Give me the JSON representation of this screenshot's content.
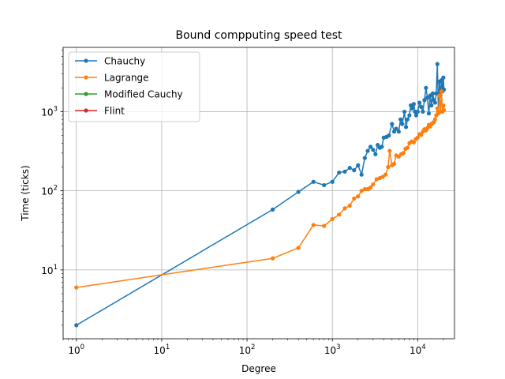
{
  "chart_data": {
    "type": "line",
    "title": "Bound compputing speed test",
    "xlabel": "Degree",
    "ylabel": "Time (ticks)",
    "xscale": "log",
    "yscale": "log",
    "xlim": [
      0.7,
      27000
    ],
    "ylim": [
      1.35,
      6500
    ],
    "grid": true,
    "legend_position": "upper-left",
    "x_ticks": [
      {
        "value": 1,
        "base": "10",
        "exp": "0"
      },
      {
        "value": 10,
        "base": "10",
        "exp": "1"
      },
      {
        "value": 100,
        "base": "10",
        "exp": "2"
      },
      {
        "value": 1000,
        "base": "10",
        "exp": "3"
      },
      {
        "value": 10000,
        "base": "10",
        "exp": "4"
      }
    ],
    "y_ticks": [
      {
        "value": 10,
        "base": "10",
        "exp": "1"
      },
      {
        "value": 100,
        "base": "10",
        "exp": "2"
      },
      {
        "value": 1000,
        "base": "10",
        "exp": "3"
      }
    ],
    "series": [
      {
        "name": "Chauchy",
        "color": "#1f77b4",
        "points": [
          [
            1,
            2
          ],
          [
            200,
            58
          ],
          [
            400,
            97
          ],
          [
            600,
            130
          ],
          [
            800,
            118
          ],
          [
            1000,
            130
          ],
          [
            1200,
            170
          ],
          [
            1400,
            175
          ],
          [
            1600,
            195
          ],
          [
            1800,
            182
          ],
          [
            2000,
            210
          ],
          [
            2200,
            160
          ],
          [
            2400,
            260
          ],
          [
            2600,
            320
          ],
          [
            2800,
            360
          ],
          [
            3000,
            330
          ],
          [
            3200,
            290
          ],
          [
            3400,
            380
          ],
          [
            3600,
            350
          ],
          [
            3800,
            360
          ],
          [
            4000,
            470
          ],
          [
            4300,
            480
          ],
          [
            4600,
            500
          ],
          [
            5000,
            700
          ],
          [
            5300,
            560
          ],
          [
            5600,
            610
          ],
          [
            6000,
            560
          ],
          [
            6300,
            800
          ],
          [
            6600,
            700
          ],
          [
            7000,
            1000
          ],
          [
            7300,
            640
          ],
          [
            7600,
            800
          ],
          [
            8000,
            900
          ],
          [
            8300,
            1200
          ],
          [
            8600,
            1100
          ],
          [
            9000,
            1250
          ],
          [
            9300,
            1000
          ],
          [
            9600,
            900
          ],
          [
            10000,
            1000
          ],
          [
            10500,
            1300
          ],
          [
            11000,
            1150
          ],
          [
            11500,
            1000
          ],
          [
            12000,
            1400
          ],
          [
            12500,
            2000
          ],
          [
            13000,
            1500
          ],
          [
            13500,
            950
          ],
          [
            14000,
            1600
          ],
          [
            14500,
            1200
          ],
          [
            15000,
            1700
          ],
          [
            15500,
            1400
          ],
          [
            16000,
            1300
          ],
          [
            16500,
            1700
          ],
          [
            17000,
            4000
          ],
          [
            17500,
            1000
          ],
          [
            18000,
            2400
          ],
          [
            18500,
            1600
          ],
          [
            19000,
            2500
          ],
          [
            19500,
            1800
          ],
          [
            20000,
            2700
          ],
          [
            20300,
            1900
          ]
        ]
      },
      {
        "name": "Lagrange",
        "color": "#ff7f0e",
        "points": [
          [
            1,
            6
          ],
          [
            200,
            14
          ],
          [
            400,
            19
          ],
          [
            600,
            37
          ],
          [
            800,
            36
          ],
          [
            1000,
            44
          ],
          [
            1200,
            50
          ],
          [
            1400,
            60
          ],
          [
            1600,
            65
          ],
          [
            1800,
            80
          ],
          [
            2000,
            85
          ],
          [
            2200,
            100
          ],
          [
            2400,
            105
          ],
          [
            2600,
            105
          ],
          [
            2800,
            110
          ],
          [
            3000,
            120
          ],
          [
            3300,
            140
          ],
          [
            3600,
            145
          ],
          [
            3900,
            150
          ],
          [
            4200,
            160
          ],
          [
            4500,
            200
          ],
          [
            4700,
            320
          ],
          [
            5000,
            210
          ],
          [
            5300,
            220
          ],
          [
            5600,
            280
          ],
          [
            6000,
            270
          ],
          [
            6400,
            290
          ],
          [
            6800,
            300
          ],
          [
            7200,
            340
          ],
          [
            7600,
            350
          ],
          [
            8000,
            400
          ],
          [
            8500,
            420
          ],
          [
            9000,
            410
          ],
          [
            9500,
            450
          ],
          [
            10000,
            470
          ],
          [
            10500,
            520
          ],
          [
            11000,
            510
          ],
          [
            11500,
            560
          ],
          [
            12000,
            600
          ],
          [
            12500,
            580
          ],
          [
            13000,
            620
          ],
          [
            13500,
            680
          ],
          [
            14000,
            650
          ],
          [
            14500,
            700
          ],
          [
            15000,
            720
          ],
          [
            15500,
            740
          ],
          [
            16000,
            800
          ],
          [
            16500,
            900
          ],
          [
            17000,
            1100
          ],
          [
            17500,
            950
          ],
          [
            18000,
            1600
          ],
          [
            18500,
            1000
          ],
          [
            19000,
            1800
          ],
          [
            19500,
            1000
          ],
          [
            20000,
            1200
          ],
          [
            20300,
            1050
          ]
        ]
      },
      {
        "name": "Modified Cauchy",
        "color": "#2ca02c",
        "points": []
      },
      {
        "name": "Flint",
        "color": "#d62728",
        "points": []
      }
    ]
  }
}
